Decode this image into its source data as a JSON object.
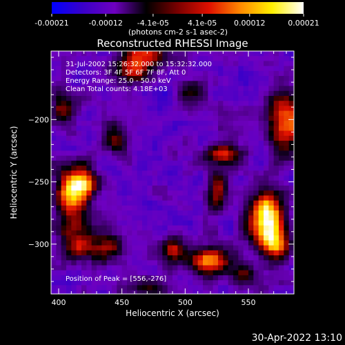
{
  "chart_data": {
    "type": "heatmap",
    "title": "Reconstructed RHESSI Image",
    "xlabel": "Heliocentric X (arcsec)",
    "ylabel": "Heliocentric Y (arcsec)",
    "xlim": [
      394,
      586
    ],
    "ylim": [
      -340,
      -145
    ],
    "x_ticks": [
      400,
      450,
      500,
      550
    ],
    "y_ticks": [
      -200,
      -250,
      -300
    ],
    "colorbar": {
      "ticks": [
        "-0.00021",
        "-0.00012",
        "-4.1e-05",
        "4.1e-05",
        "0.00012",
        "0.00021"
      ],
      "label": "(photons cm-2 s-1 asec-2)",
      "range": [
        -0.00021,
        0.00021
      ],
      "colors": [
        "#0000ff",
        "#3a00c8",
        "#6e00c0",
        "#000000",
        "#7a0000",
        "#e01000",
        "#ff8a00",
        "#fff000",
        "#ffffff"
      ]
    },
    "annotations": [
      "31-Jul-2002 15:26:32.000 to 15:32:32.000",
      "Detectors: 3F 4F 5F 6F 7F 8F, Att 0",
      "Energy Range: 25.0 - 50.0 keV",
      "Clean     Total counts: 4.18E+03"
    ],
    "peak_note": "Position of Peak = [556,-276]",
    "peak": [
      556,
      -276
    ],
    "hot_spots": [
      {
        "x": 563,
        "y": -278,
        "amp": 1.0,
        "sx": 10,
        "sy": 14
      },
      {
        "x": 572,
        "y": -300,
        "amp": 0.75,
        "sx": 9,
        "sy": 10
      },
      {
        "x": 520,
        "y": -313,
        "amp": 0.9,
        "sx": 11,
        "sy": 7
      },
      {
        "x": 490,
        "y": -305,
        "amp": 0.55,
        "sx": 8,
        "sy": 8
      },
      {
        "x": 410,
        "y": -263,
        "amp": 0.8,
        "sx": 9,
        "sy": 16
      },
      {
        "x": 420,
        "y": -250,
        "amp": 0.6,
        "sx": 8,
        "sy": 9
      },
      {
        "x": 415,
        "y": -300,
        "amp": 0.55,
        "sx": 9,
        "sy": 10
      },
      {
        "x": 438,
        "y": -303,
        "amp": 0.55,
        "sx": 8,
        "sy": 9
      },
      {
        "x": 468,
        "y": -148,
        "amp": 0.65,
        "sx": 12,
        "sy": 9
      },
      {
        "x": 455,
        "y": -162,
        "amp": 0.5,
        "sx": 9,
        "sy": 8
      },
      {
        "x": 580,
        "y": -200,
        "amp": 0.7,
        "sx": 10,
        "sy": 18
      },
      {
        "x": 530,
        "y": -228,
        "amp": 0.55,
        "sx": 14,
        "sy": 6
      },
      {
        "x": 525,
        "y": -258,
        "amp": 0.5,
        "sx": 6,
        "sy": 12
      },
      {
        "x": 445,
        "y": -215,
        "amp": 0.5,
        "sx": 7,
        "sy": 8
      },
      {
        "x": 404,
        "y": -190,
        "amp": 0.5,
        "sx": 7,
        "sy": 9
      },
      {
        "x": 470,
        "y": -335,
        "amp": 0.35,
        "sx": 10,
        "sy": 6
      },
      {
        "x": 505,
        "y": -178,
        "amp": 0.4,
        "sx": 9,
        "sy": 7
      },
      {
        "x": 545,
        "y": -325,
        "amp": 0.45,
        "sx": 8,
        "sy": 7
      }
    ]
  },
  "timestamp": "30-Apr-2022 13:10"
}
